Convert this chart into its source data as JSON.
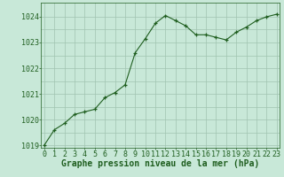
{
  "x": [
    0,
    1,
    2,
    3,
    4,
    5,
    6,
    7,
    8,
    9,
    10,
    11,
    12,
    13,
    14,
    15,
    16,
    17,
    18,
    19,
    20,
    21,
    22,
    23
  ],
  "y": [
    1019.0,
    1019.6,
    1019.85,
    1020.2,
    1020.3,
    1020.4,
    1020.85,
    1021.05,
    1021.35,
    1022.6,
    1023.15,
    1023.75,
    1024.05,
    1023.85,
    1023.65,
    1023.3,
    1023.3,
    1023.2,
    1023.1,
    1023.4,
    1023.6,
    1023.85,
    1024.0,
    1024.1
  ],
  "line_color": "#1f5e1f",
  "marker_color": "#1f5e1f",
  "bg_color": "#c8e8d8",
  "grid_color": "#a0c4b0",
  "xlabel": "Graphe pression niveau de la mer (hPa)",
  "ylim_min": 1018.9,
  "ylim_max": 1024.55,
  "xlim_min": -0.3,
  "xlim_max": 23.3,
  "yticks": [
    1019,
    1020,
    1021,
    1022,
    1023,
    1024
  ],
  "yticks_minor": [
    1019.5,
    1020.5,
    1021.5,
    1022.5,
    1023.5
  ],
  "xticks": [
    0,
    1,
    2,
    3,
    4,
    5,
    6,
    7,
    8,
    9,
    10,
    11,
    12,
    13,
    14,
    15,
    16,
    17,
    18,
    19,
    20,
    21,
    22,
    23
  ],
  "xlabel_fontsize": 7.0,
  "tick_fontsize": 6.0
}
